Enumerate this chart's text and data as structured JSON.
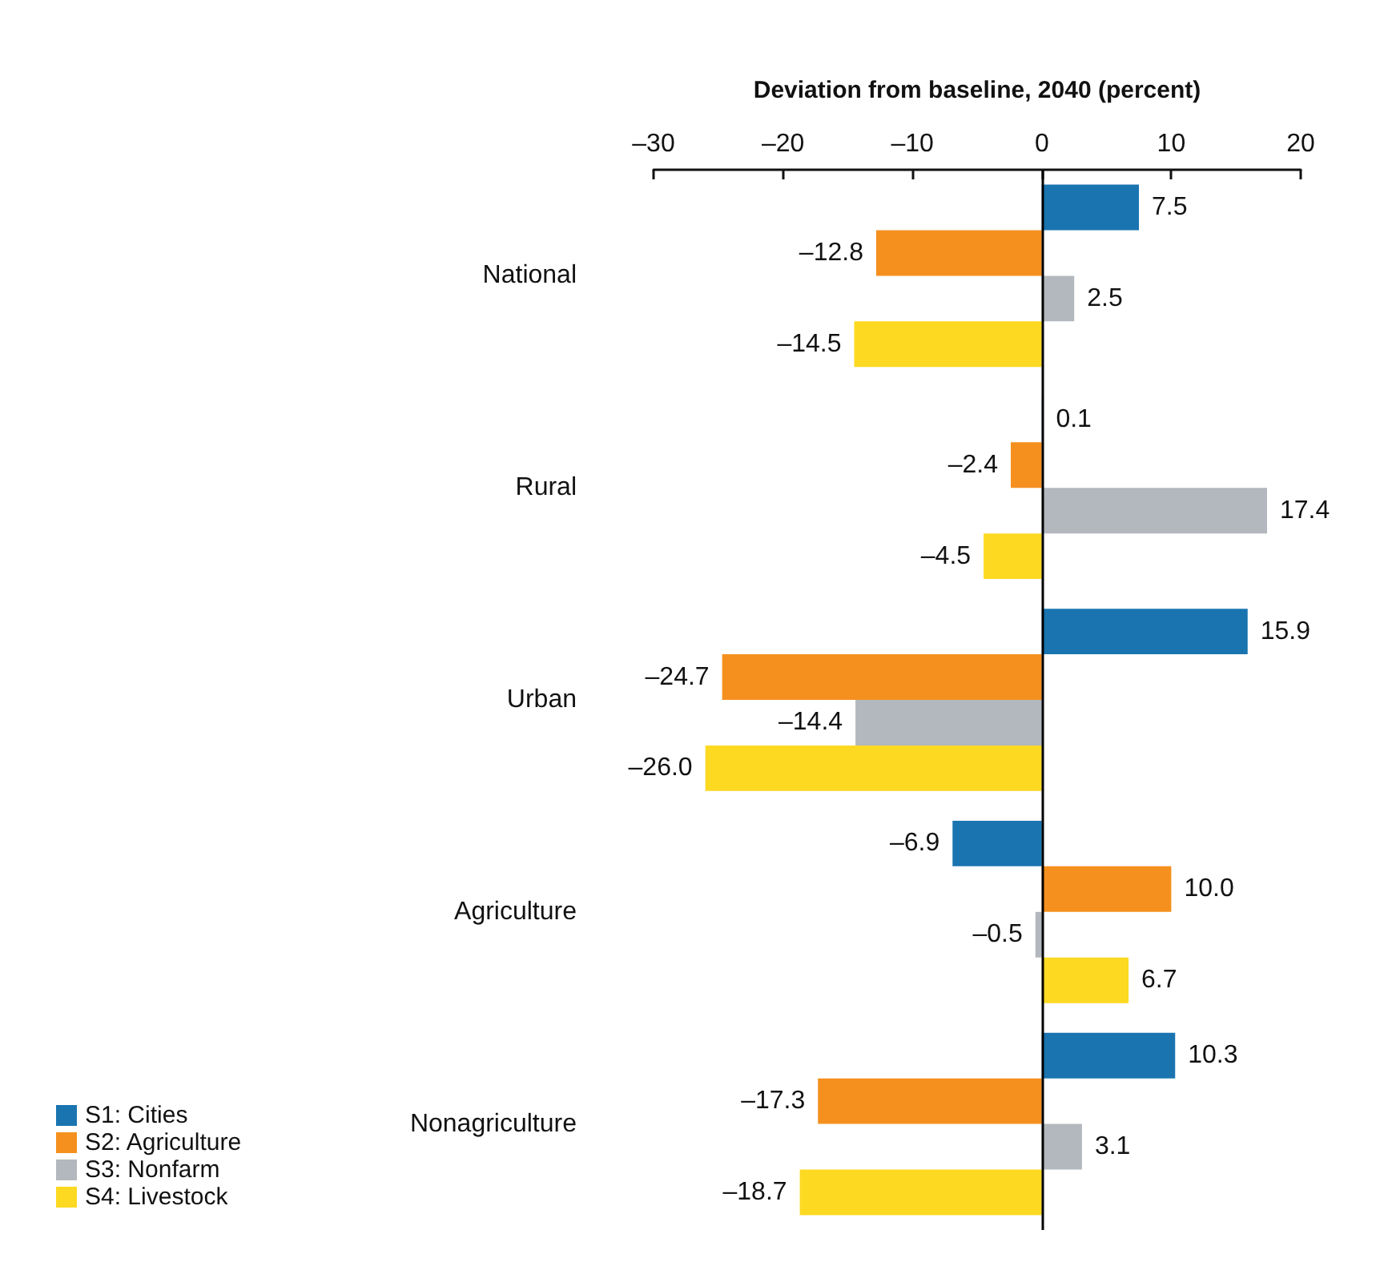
{
  "chart_data": {
    "type": "bar",
    "orientation": "horizontal",
    "xlabel": "Deviation from baseline, 2040 (percent)",
    "categories": [
      "National",
      "Rural",
      "Urban",
      "Agriculture",
      "Nonagriculture"
    ],
    "series": [
      {
        "name": "S1: Cities",
        "color": "#1a74b0",
        "values": [
          7.5,
          0.1,
          15.9,
          -6.9,
          10.3
        ],
        "value_labels": [
          "7.5",
          "0.1",
          "15.9",
          "–6.9",
          "10.3"
        ]
      },
      {
        "name": "S2: Agriculture",
        "color": "#f5901f",
        "values": [
          -12.8,
          -2.4,
          -24.7,
          10.0,
          -17.3
        ],
        "value_labels": [
          "–12.8",
          "–2.4",
          "–24.7",
          "10.0",
          "–17.3"
        ]
      },
      {
        "name": "S3: Nonfarm",
        "color": "#b2b8bd",
        "values": [
          2.5,
          17.4,
          -14.4,
          -0.5,
          3.1
        ],
        "value_labels": [
          "2.5",
          "17.4",
          "–14.4",
          "–0.5",
          "3.1"
        ]
      },
      {
        "name": "S4: Livestock",
        "color": "#fdd922",
        "values": [
          -14.5,
          -4.5,
          -26.0,
          6.7,
          -18.7
        ],
        "value_labels": [
          "–14.5",
          "–4.5",
          "–26.0",
          "6.7",
          "–18.7"
        ]
      }
    ],
    "xlim": [
      -30,
      20
    ],
    "xticks": [
      {
        "value": -30,
        "label": "–30"
      },
      {
        "value": -20,
        "label": "–20"
      },
      {
        "value": -10,
        "label": "–10"
      },
      0,
      10,
      20
    ],
    "ref_lines": [
      {
        "axis": "x",
        "value": 0,
        "color": "#000000"
      }
    ],
    "grid": false,
    "legend": "bottom left"
  }
}
